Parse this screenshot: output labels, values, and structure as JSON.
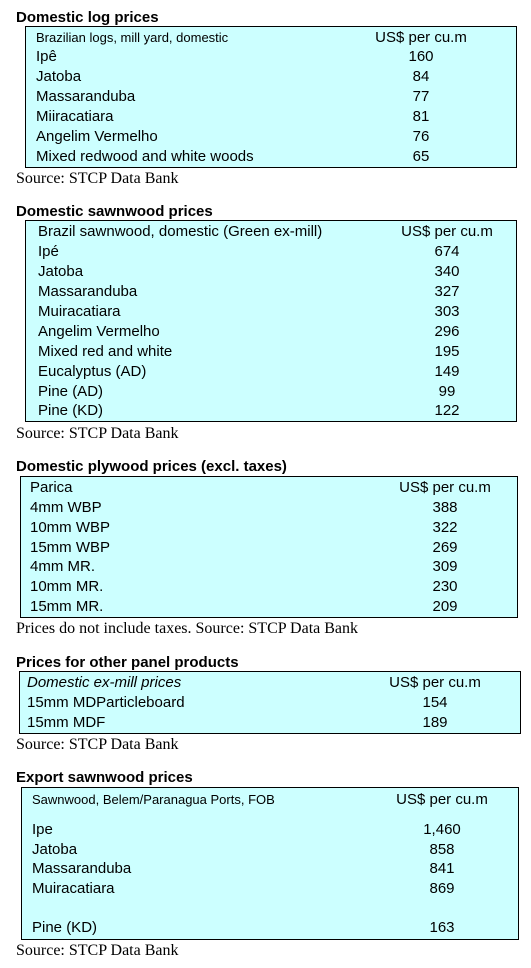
{
  "sections": [
    {
      "title": "Domestic log prices",
      "header": {
        "name": "Brazilian logs, mill yard, domestic",
        "unit": "US$ per cu.m"
      },
      "rows": [
        {
          "name": "Ipê",
          "value": "160"
        },
        {
          "name": "Jatoba",
          "value": "84"
        },
        {
          "name": "Massaranduba",
          "value": "77"
        },
        {
          "name": "Miiracatiara",
          "value": "81"
        },
        {
          "name": "Angelim Vermelho",
          "value": "76"
        },
        {
          "name": "Mixed redwood and white woods",
          "value": "65"
        }
      ],
      "source": "Source: STCP Data Bank"
    },
    {
      "title": "Domestic sawnwood prices",
      "header": {
        "name": "Brazil sawnwood, domestic (Green ex-mill)",
        "unit": "US$ per cu.m"
      },
      "rows": [
        {
          "name": "Ipé",
          "value": "674"
        },
        {
          "name": "Jatoba",
          "value": "340"
        },
        {
          "name": "Massaranduba",
          "value": "327"
        },
        {
          "name": "Muiracatiara",
          "value": "303"
        },
        {
          "name": "Angelim Vermelho",
          "value": "296"
        },
        {
          "name": "Mixed red and white",
          "value": "195"
        },
        {
          "name": "Eucalyptus (AD)",
          "value": "149"
        },
        {
          "name": "Pine (AD)",
          "value": "99"
        },
        {
          "name": "Pine (KD)",
          "value": "122"
        }
      ],
      "source": "Source: STCP Data Bank"
    },
    {
      "title": "Domestic plywood prices (excl. taxes)",
      "header": {
        "name": "Parica",
        "unit": "US$ per cu.m"
      },
      "rows": [
        {
          "name": "4mm WBP",
          "value": "388"
        },
        {
          "name": "10mm WBP",
          "value": "322"
        },
        {
          "name": "15mm WBP",
          "value": "269"
        },
        {
          "name": "4mm MR.",
          "value": "309"
        },
        {
          "name": "10mm MR.",
          "value": "230"
        },
        {
          "name": "15mm MR.",
          "value": "209"
        }
      ],
      "source": "Prices do not include taxes. Source: STCP Data Bank"
    },
    {
      "title": "Prices for other panel products",
      "header": {
        "name": "Domestic ex-mill prices",
        "unit": "US$ per cu.m"
      },
      "rows": [
        {
          "name": "15mm MDParticleboard",
          "value": "154"
        },
        {
          "name": "15mm MDF",
          "value": "189"
        }
      ],
      "source": "Source: STCP Data Bank"
    },
    {
      "title": "Export sawnwood prices",
      "header": {
        "name": "Sawnwood, Belem/Paranagua Ports, FOB",
        "unit": "US$ per cu.m"
      },
      "rows": [
        {
          "name": "Ipe",
          "value": "1,460"
        },
        {
          "name": "Jatoba",
          "value": "858"
        },
        {
          "name": "Massaranduba",
          "value": "841"
        },
        {
          "name": "Muiracatiara",
          "value": "869"
        },
        {
          "name": "Pine (KD)",
          "value": "163"
        }
      ],
      "source": "Source: STCP Data Bank"
    }
  ],
  "colors": {
    "table_background": "#ccffff",
    "border": "#000000"
  }
}
